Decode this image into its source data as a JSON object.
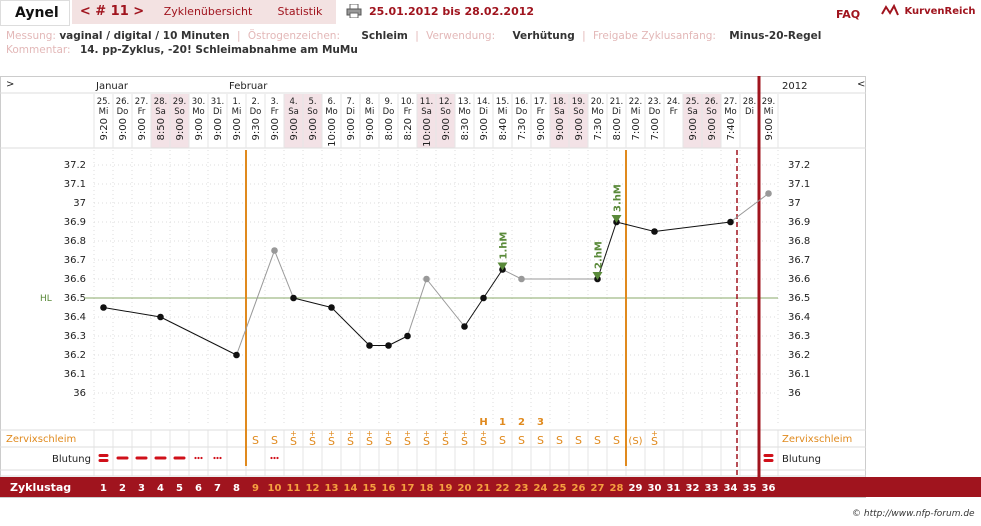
{
  "header": {
    "user": "Aynel",
    "cycle_nav": "< # 11 >",
    "tabs": [
      "Zyklenübersicht",
      "Statistik"
    ],
    "date_range": "25.01.2012 bis 28.02.2012",
    "faq": "FAQ",
    "brand": "KurvenReich"
  },
  "meta": {
    "row1": [
      {
        "label": "Messung:",
        "value": "vaginal / digital / 10 Minuten"
      },
      {
        "label": "Östrogenzeichen:",
        "value": "Schleim"
      },
      {
        "label": "Verwendung:",
        "value": "Verhütung"
      },
      {
        "label": "Freigabe Zyklusanfang:",
        "value": "Minus-20-Regel"
      }
    ],
    "row2": {
      "label": "Kommentar:",
      "value": "14. pp-Zyklus, -20! Schleimabnahme am MuMu"
    }
  },
  "chart_data": {
    "type": "line",
    "year": "2012",
    "months": [
      {
        "label": "Januar",
        "day": 1
      },
      {
        "label": "Februar",
        "day": 8
      }
    ],
    "days": [
      {
        "date": "25.",
        "wd": "Mi",
        "time": "9:20",
        "weekend": false
      },
      {
        "date": "26.",
        "wd": "Do",
        "time": "9:00",
        "weekend": false
      },
      {
        "date": "27.",
        "wd": "Fr",
        "time": "9:00",
        "weekend": false
      },
      {
        "date": "28.",
        "wd": "Sa",
        "time": "8:50",
        "weekend": true
      },
      {
        "date": "29.",
        "wd": "So",
        "time": "9:00",
        "weekend": true
      },
      {
        "date": "30.",
        "wd": "Mo",
        "time": "9:00",
        "weekend": false
      },
      {
        "date": "31.",
        "wd": "Di",
        "time": "9:00",
        "weekend": false
      },
      {
        "date": "1.",
        "wd": "Mi",
        "time": "9:00",
        "weekend": false
      },
      {
        "date": "2.",
        "wd": "Do",
        "time": "9:30",
        "weekend": false
      },
      {
        "date": "3.",
        "wd": "Fr",
        "time": "9:00",
        "weekend": false
      },
      {
        "date": "4.",
        "wd": "Sa",
        "time": "9:00",
        "weekend": true
      },
      {
        "date": "5.",
        "wd": "So",
        "time": "9:00",
        "weekend": true
      },
      {
        "date": "6.",
        "wd": "Mo",
        "time": "10:00",
        "weekend": false
      },
      {
        "date": "7.",
        "wd": "Di",
        "time": "9:00",
        "weekend": false
      },
      {
        "date": "8.",
        "wd": "Mi",
        "time": "9:00",
        "weekend": false
      },
      {
        "date": "9.",
        "wd": "Do",
        "time": "8:00",
        "weekend": false
      },
      {
        "date": "10.",
        "wd": "Fr",
        "time": "8:20",
        "weekend": false
      },
      {
        "date": "11.",
        "wd": "Sa",
        "time": "10:00",
        "weekend": true
      },
      {
        "date": "12.",
        "wd": "So",
        "time": "9:00",
        "weekend": true
      },
      {
        "date": "13.",
        "wd": "Mo",
        "time": "8:30",
        "weekend": false
      },
      {
        "date": "14.",
        "wd": "Di",
        "time": "9:00",
        "weekend": false
      },
      {
        "date": "15.",
        "wd": "Mi",
        "time": "8:40",
        "weekend": false
      },
      {
        "date": "16.",
        "wd": "Do",
        "time": "7:30",
        "weekend": false
      },
      {
        "date": "17.",
        "wd": "Fr",
        "time": "9:00",
        "weekend": false
      },
      {
        "date": "18.",
        "wd": "Sa",
        "time": "9:00",
        "weekend": true
      },
      {
        "date": "19.",
        "wd": "So",
        "time": "9:00",
        "weekend": true
      },
      {
        "date": "20.",
        "wd": "Mo",
        "time": "7:30",
        "weekend": false
      },
      {
        "date": "21.",
        "wd": "Di",
        "time": "8:00",
        "weekend": false
      },
      {
        "date": "22.",
        "wd": "Mi",
        "time": "7:00",
        "weekend": false
      },
      {
        "date": "23.",
        "wd": "Do",
        "time": "7:00",
        "weekend": false
      },
      {
        "date": "24.",
        "wd": "Fr",
        "time": "",
        "weekend": false
      },
      {
        "date": "25.",
        "wd": "Sa",
        "time": "9:00",
        "weekend": true
      },
      {
        "date": "26.",
        "wd": "So",
        "time": "9:00",
        "weekend": true
      },
      {
        "date": "27.",
        "wd": "Mo",
        "time": "7:40",
        "weekend": false
      },
      {
        "date": "28.",
        "wd": "Di",
        "time": "",
        "weekend": false
      },
      {
        "date": "29.",
        "wd": "Mi",
        "time": "9:00",
        "weekend": false
      }
    ],
    "y_ticks": [
      "37.2",
      "37.1",
      "37",
      "36.9",
      "36.8",
      "36.7",
      "36.6",
      "36.5",
      "36.4",
      "36.3",
      "36.2",
      "36.1",
      "36"
    ],
    "ylim": [
      35.95,
      37.25
    ],
    "hl_label": "HL",
    "hl_value": 36.5,
    "temperatures": [
      {
        "day": 1,
        "value": 36.45,
        "excluded": false
      },
      {
        "day": 4,
        "value": 36.4,
        "excluded": false
      },
      {
        "day": 8,
        "value": 36.2,
        "excluded": false
      },
      {
        "day": 10,
        "value": 36.75,
        "excluded": true
      },
      {
        "day": 11,
        "value": 36.5,
        "excluded": false
      },
      {
        "day": 13,
        "value": 36.45,
        "excluded": false
      },
      {
        "day": 15,
        "value": 36.25,
        "excluded": false
      },
      {
        "day": 16,
        "value": 36.25,
        "excluded": false
      },
      {
        "day": 17,
        "value": 36.3,
        "excluded": false
      },
      {
        "day": 18,
        "value": 36.6,
        "excluded": true
      },
      {
        "day": 20,
        "value": 36.35,
        "excluded": false
      },
      {
        "day": 21,
        "value": 36.5,
        "excluded": false
      },
      {
        "day": 22,
        "value": 36.65,
        "excluded": false
      },
      {
        "day": 23,
        "value": 36.6,
        "excluded": true
      },
      {
        "day": 27,
        "value": 36.6,
        "excluded": false
      },
      {
        "day": 28,
        "value": 36.9,
        "excluded": false
      },
      {
        "day": 30,
        "value": 36.85,
        "excluded": false
      },
      {
        "day": 34,
        "value": 36.9,
        "excluded": false
      },
      {
        "day": 36,
        "value": 37.05,
        "excluded": true
      }
    ],
    "higher_measurements": [
      {
        "day": 22,
        "label": "1.hM"
      },
      {
        "day": 27,
        "label": "2.hM"
      },
      {
        "day": 28,
        "label": "3.hM"
      }
    ],
    "peak_markers": [
      {
        "day": 21,
        "label": "H"
      },
      {
        "day": 22,
        "label": "1"
      },
      {
        "day": 23,
        "label": "2"
      },
      {
        "day": 24,
        "label": "3"
      }
    ],
    "mucus_label": "Zervixschleim",
    "mucus": [
      {
        "day": 9,
        "label": "S"
      },
      {
        "day": 10,
        "label": "S"
      },
      {
        "day": 11,
        "label": "S+"
      },
      {
        "day": 12,
        "label": "S+"
      },
      {
        "day": 13,
        "label": "S+"
      },
      {
        "day": 14,
        "label": "S+"
      },
      {
        "day": 15,
        "label": "S+"
      },
      {
        "day": 16,
        "label": "S+"
      },
      {
        "day": 17,
        "label": "S+"
      },
      {
        "day": 18,
        "label": "S+"
      },
      {
        "day": 19,
        "label": "S+"
      },
      {
        "day": 20,
        "label": "S+"
      },
      {
        "day": 21,
        "label": "S+"
      },
      {
        "day": 22,
        "label": "S"
      },
      {
        "day": 23,
        "label": "S"
      },
      {
        "day": 24,
        "label": "S"
      },
      {
        "day": 25,
        "label": "S"
      },
      {
        "day": 26,
        "label": "S"
      },
      {
        "day": 27,
        "label": "S"
      },
      {
        "day": 28,
        "label": "S"
      },
      {
        "day": 29,
        "label": "(S)"
      },
      {
        "day": 30,
        "label": "S+"
      }
    ],
    "bleeding_label": "Blutung",
    "bleeding": [
      {
        "day": 1,
        "level": "heavy"
      },
      {
        "day": 2,
        "level": "medium"
      },
      {
        "day": 3,
        "level": "medium"
      },
      {
        "day": 4,
        "level": "medium"
      },
      {
        "day": 5,
        "level": "medium"
      },
      {
        "day": 6,
        "level": "spotting"
      },
      {
        "day": 7,
        "level": "spotting"
      },
      {
        "day": 10,
        "level": "spotting"
      },
      {
        "day": 36,
        "level": "heavy"
      }
    ],
    "cycle_day_label": "Zyklustag",
    "cycle_days": [
      "1",
      "2",
      "3",
      "4",
      "5",
      "6",
      "7",
      "8",
      "9",
      "10",
      "11",
      "12",
      "13",
      "14",
      "15",
      "16",
      "17",
      "18",
      "19",
      "20",
      "21",
      "22",
      "23",
      "24",
      "25",
      "26",
      "27",
      "28",
      "29",
      "30",
      "31",
      "32",
      "33",
      "34",
      "35",
      "36"
    ],
    "fertile_window": {
      "start_day": 9,
      "end_day": 28
    },
    "dashed_line_day": 34,
    "cycle_end_day": 35,
    "colors": {
      "accent": "#a0141e",
      "orange": "#e08a1e",
      "green": "#5a8a3a",
      "hl_line": "#8aa86a",
      "weekend_bg": "#f3e2e6"
    }
  },
  "footer": "© http://www.nfp-forum.de"
}
